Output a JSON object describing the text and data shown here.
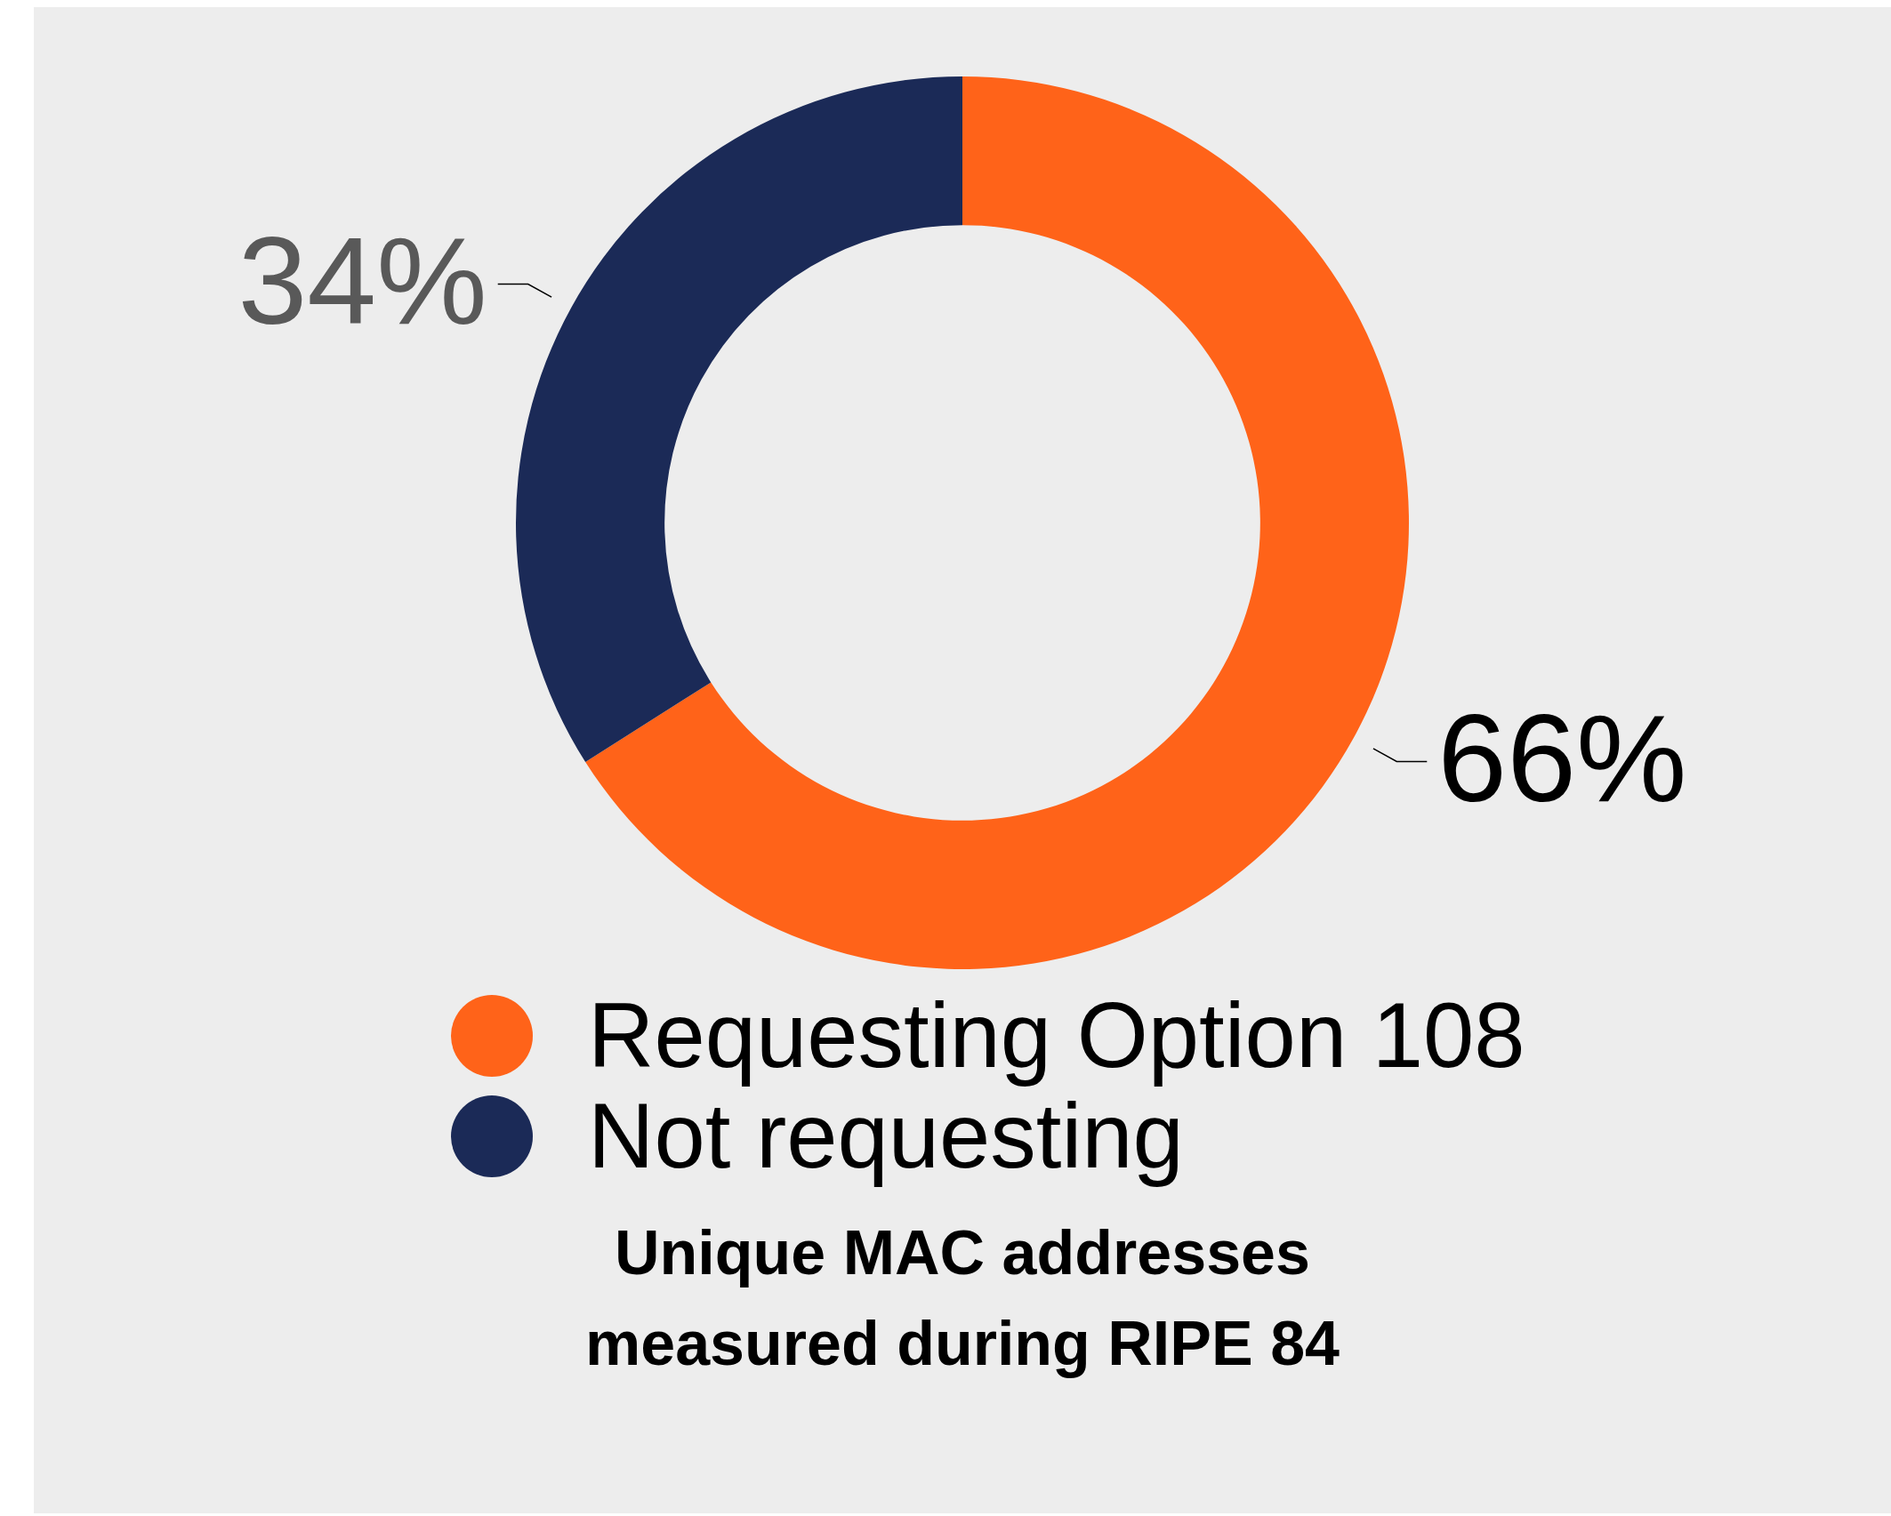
{
  "chart_data": {
    "type": "donut",
    "title": "Unique MAC addresses measured during RIPE 84",
    "categories": [
      "Requesting Option 108",
      "Not requesting"
    ],
    "values": [
      66,
      34
    ],
    "colors": [
      "#ff6319",
      "#1b2a57"
    ],
    "value_labels": [
      "66%",
      "34%"
    ],
    "legend": "bottom"
  }
}
